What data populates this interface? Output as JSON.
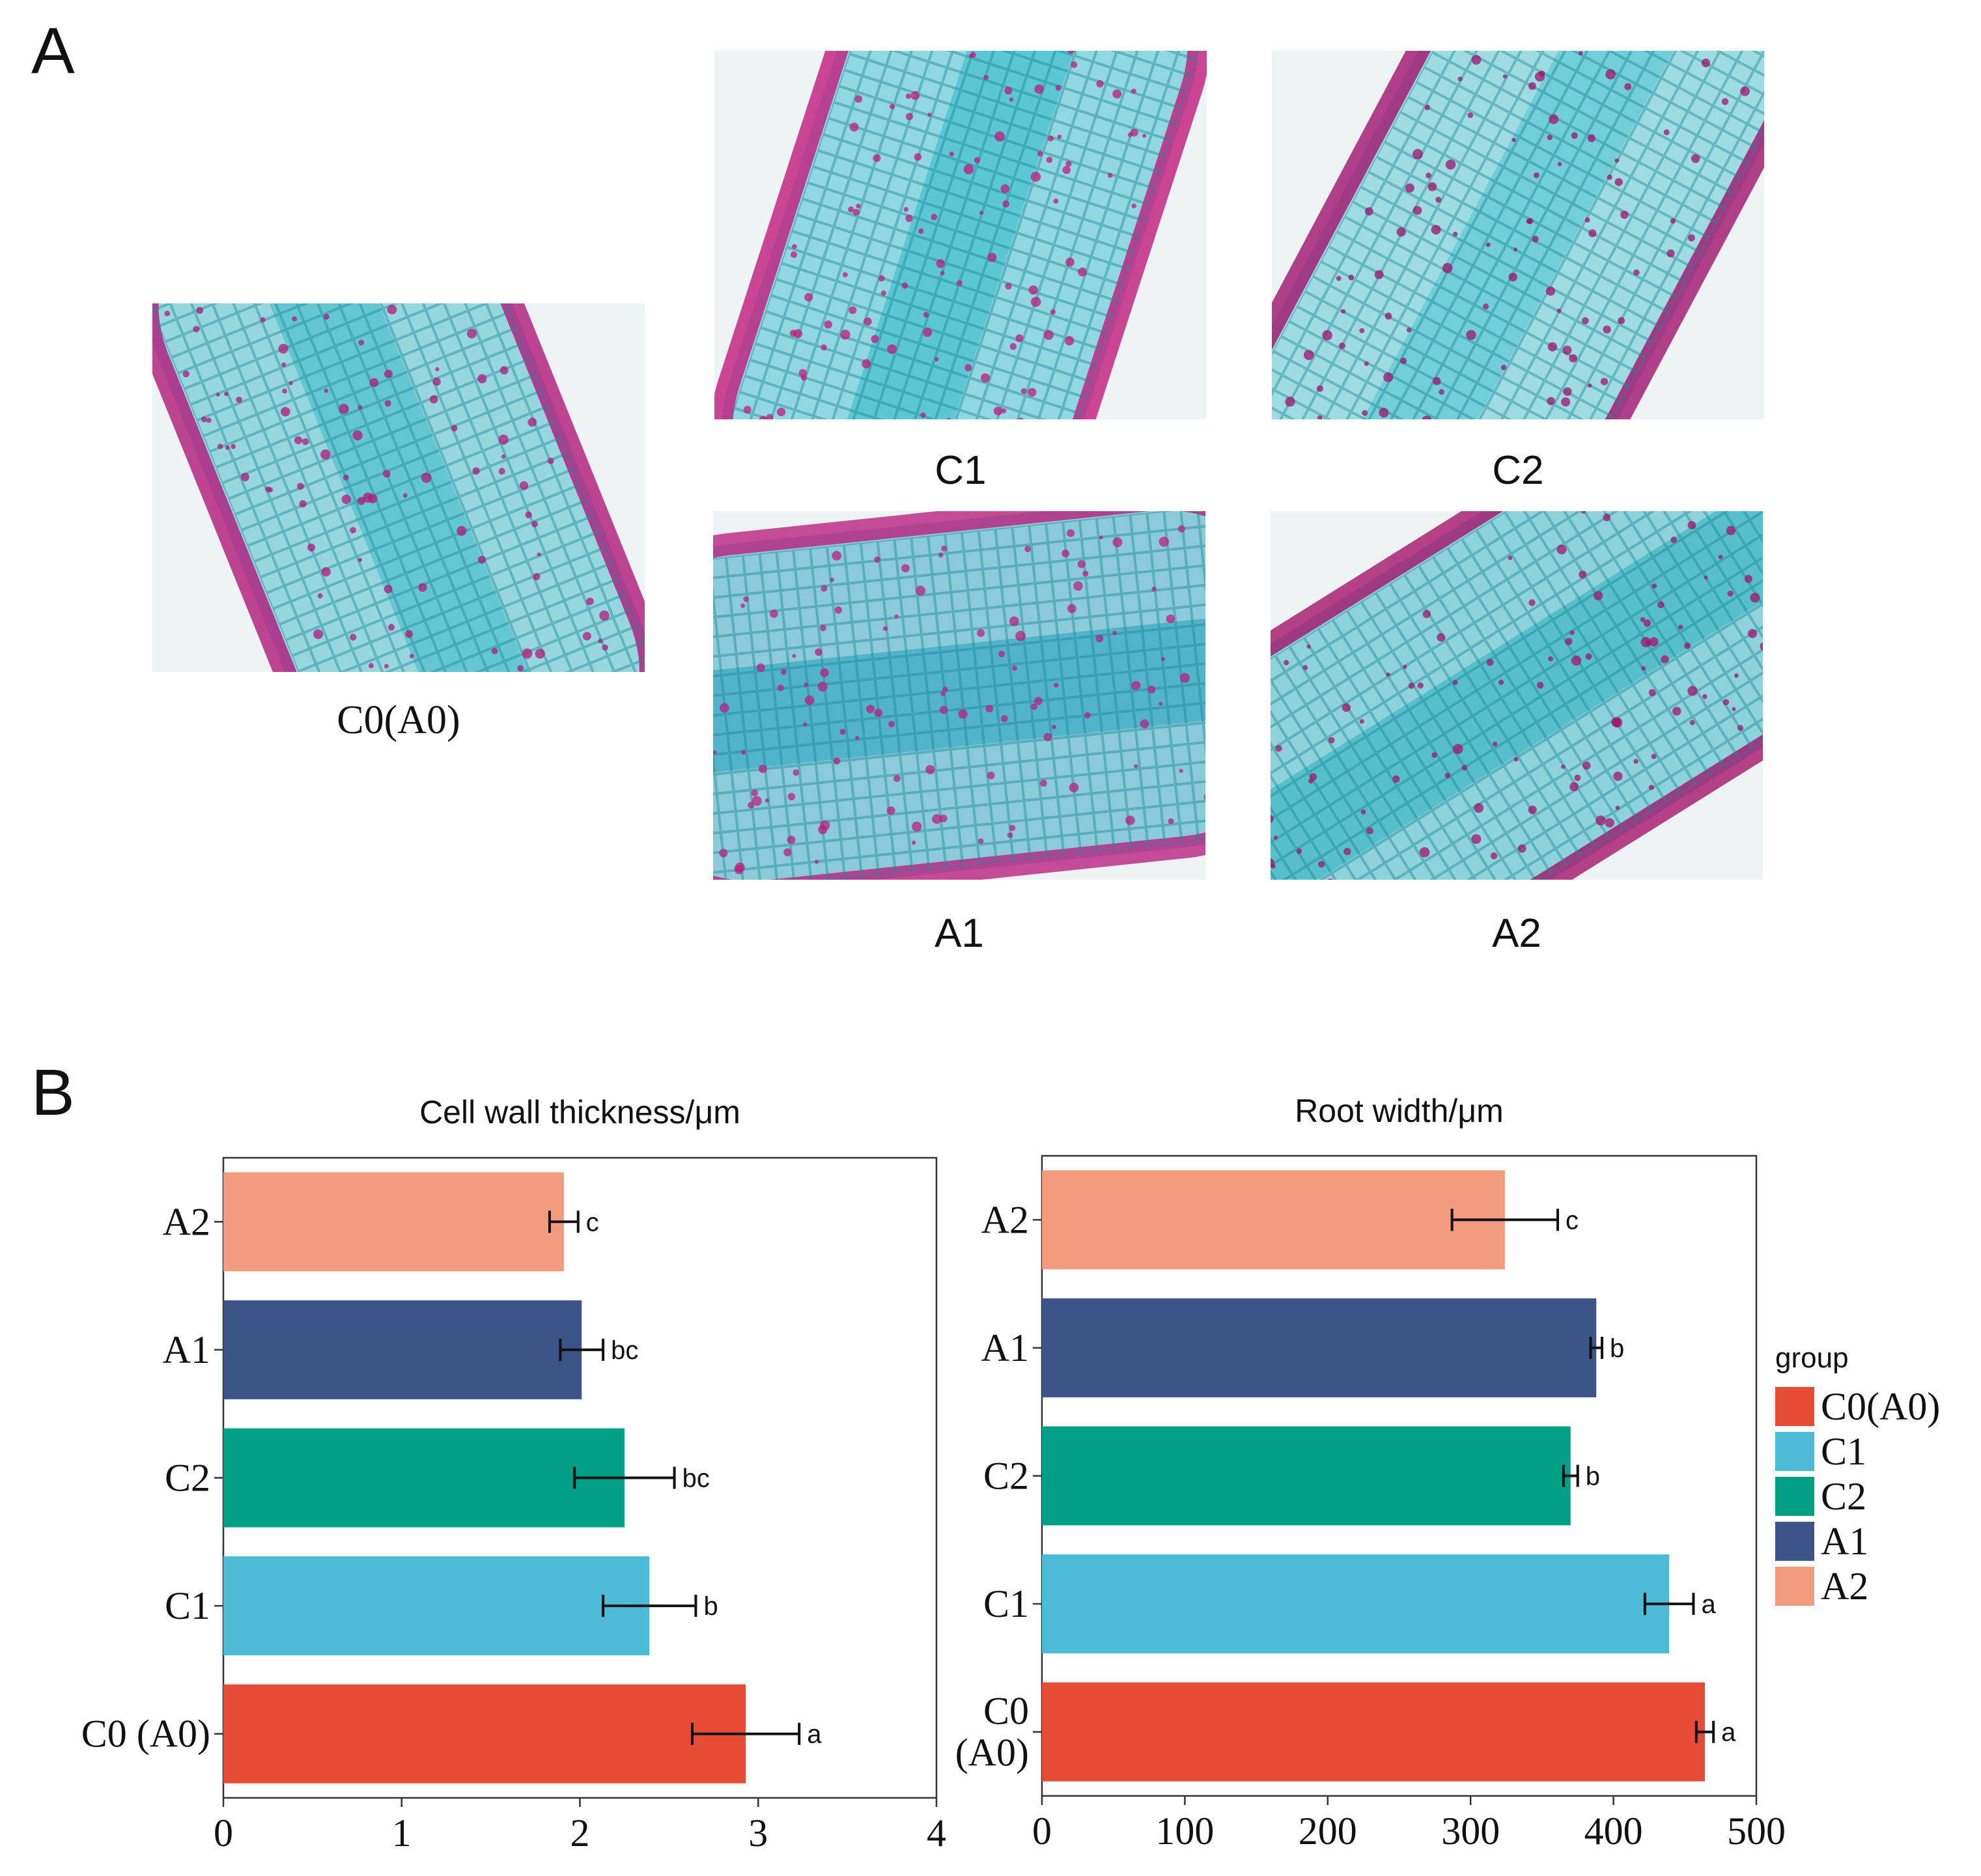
{
  "panel_a": {
    "label": "A",
    "images": [
      {
        "caption": "C0(A0)",
        "stain_base": "#4fbfcc",
        "stain_accent": "#b0187a"
      },
      {
        "caption": "C1",
        "stain_base": "#45c0cf",
        "stain_accent": "#c01a7c"
      },
      {
        "caption": "C2",
        "stain_base": "#5fc8d4",
        "stain_accent": "#a0126e"
      },
      {
        "caption": "A1",
        "stain_base": "#3aa9c2",
        "stain_accent": "#b8207f"
      },
      {
        "caption": "A2",
        "stain_base": "#3fb6c4",
        "stain_accent": "#a3146a"
      }
    ]
  },
  "panel_b": {
    "label": "B"
  },
  "legend": {
    "title": "group",
    "items": [
      {
        "label": "C0(A0)",
        "color": "#e64b35"
      },
      {
        "label": "C1",
        "color": "#4dbbd5"
      },
      {
        "label": "C2",
        "color": "#00a087"
      },
      {
        "label": "A1",
        "color": "#3c5488"
      },
      {
        "label": "A2",
        "color": "#f39b7f"
      }
    ]
  },
  "chart_data": [
    {
      "type": "bar",
      "orientation": "horizontal",
      "title": "Cell wall thickness/μm",
      "categories": [
        "C0 (A0)",
        "C1",
        "C2",
        "A1",
        "A2"
      ],
      "values": [
        2.93,
        2.39,
        2.25,
        2.01,
        1.91
      ],
      "errors": [
        0.3,
        0.26,
        0.28,
        0.12,
        0.08
      ],
      "significance": [
        "a",
        "b",
        "bc",
        "bc",
        "c"
      ],
      "colors": [
        "#e64b35",
        "#4dbbd5",
        "#00a087",
        "#3c5488",
        "#f39b7f"
      ],
      "xlim": [
        0,
        4
      ],
      "xticks": [
        "0",
        "1",
        "2",
        "3",
        "4"
      ],
      "grid": false
    },
    {
      "type": "bar",
      "orientation": "horizontal",
      "title": "Root width/μm",
      "categories": [
        "C0 (A0)",
        "C1",
        "C2",
        "A1",
        "A2"
      ],
      "category_lines": [
        [
          "C0",
          "(A0)"
        ],
        [
          "C1"
        ],
        [
          "C2"
        ],
        [
          "A1"
        ],
        [
          "A2"
        ]
      ],
      "values": [
        464,
        439,
        370,
        388,
        324
      ],
      "errors": [
        6,
        17,
        5,
        4,
        37
      ],
      "significance": [
        "a",
        "a",
        "b",
        "b",
        "c"
      ],
      "colors": [
        "#e64b35",
        "#4dbbd5",
        "#00a087",
        "#3c5488",
        "#f39b7f"
      ],
      "xlim": [
        0,
        500
      ],
      "xticks": [
        "0",
        "100",
        "200",
        "300",
        "400",
        "500"
      ],
      "grid": false,
      "legend_position": "right"
    }
  ]
}
